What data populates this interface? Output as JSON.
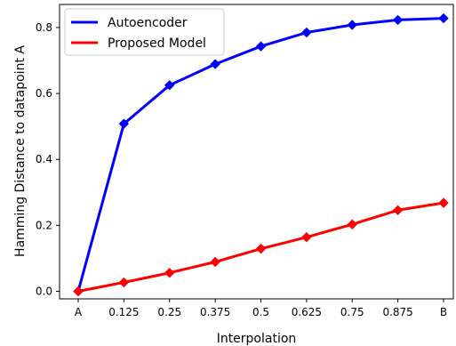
{
  "chart_data": {
    "type": "line",
    "categories": [
      "A",
      "0.125",
      "0.25",
      "0.375",
      "0.5",
      "0.625",
      "0.75",
      "0.875",
      "B"
    ],
    "series": [
      {
        "name": "Autoencoder",
        "color": "#0000ff",
        "marker": "diamond",
        "values": [
          0.0,
          0.508,
          0.625,
          0.689,
          0.743,
          0.785,
          0.808,
          0.823,
          0.828
        ]
      },
      {
        "name": "Proposed Model",
        "color": "#ff0000",
        "marker": "diamond",
        "values": [
          0.0,
          0.027,
          0.056,
          0.089,
          0.129,
          0.164,
          0.203,
          0.246,
          0.268
        ]
      }
    ],
    "xlabel": "Interpolation",
    "ylabel": "Hamming Distance to datapoint A",
    "ylim": [
      -0.023,
      0.87
    ],
    "yticks": [
      0.0,
      0.2,
      0.4,
      0.6,
      0.8
    ],
    "grid": false,
    "legend_position": "top-left"
  }
}
